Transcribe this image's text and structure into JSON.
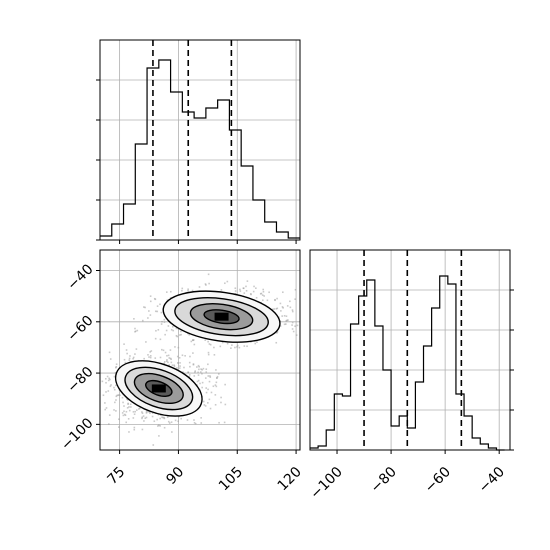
{
  "chart_data": {
    "type": "corner",
    "colors": {
      "line": "#000000",
      "grid": "#b0b0b0",
      "scatter": "#9e9e9e"
    },
    "grid": true,
    "quantile_lines": "dashed",
    "panels": [
      {
        "id": "hist_x",
        "type": "histogram-step",
        "xlim": [
          70,
          121
        ],
        "bin_edges": [
          70,
          73,
          76,
          79,
          82,
          85,
          88,
          91,
          94,
          97,
          100,
          103,
          106,
          109,
          112,
          115,
          118,
          121
        ],
        "counts": [
          2,
          8,
          18,
          48,
          86,
          90,
          74,
          64,
          61,
          66,
          70,
          55,
          37,
          20,
          9,
          4,
          1
        ],
        "quantiles": [
          83.5,
          92.5,
          103.5
        ],
        "x_ticks": [
          75,
          90,
          105,
          120
        ],
        "y_ticks": [
          0,
          20,
          40,
          60,
          80
        ]
      },
      {
        "id": "joint",
        "type": "2d-density",
        "xlim": [
          70,
          121
        ],
        "ylim": [
          -110,
          -32
        ],
        "x_ticks": [
          "75",
          "90",
          "105",
          "120"
        ],
        "y_ticks": [
          "−40",
          "−60",
          "−80",
          "−100"
        ],
        "x_tick_values": [
          75,
          90,
          105,
          120
        ],
        "y_tick_values": [
          -40,
          -60,
          -80,
          -100
        ],
        "clusters": [
          {
            "center": [
              85,
              -86
            ],
            "spread": [
              6.5,
              6.5
            ],
            "contour_radii": [
              [
                3.5,
                2.6
              ],
              [
                6.5,
                5
              ],
              [
                9,
                7.2
              ],
              [
                11.5,
                9.5
              ]
            ]
          },
          {
            "center": [
              101,
              -58
            ],
            "spread": [
              8,
              5
            ],
            "contour_radii": [
              [
                4.5,
                2.5
              ],
              [
                8,
                4.8
              ],
              [
                12,
                7
              ],
              [
                15,
                9.5
              ]
            ]
          }
        ]
      },
      {
        "id": "hist_y",
        "type": "histogram-step",
        "xlim": [
          -110,
          -36
        ],
        "bin_edges": [
          -110,
          -107,
          -104,
          -101,
          -98,
          -95,
          -92,
          -89,
          -86,
          -83,
          -80,
          -77,
          -74,
          -71,
          -68,
          -65,
          -62,
          -59,
          -56,
          -53,
          -50,
          -47,
          -44,
          -41,
          -38
        ],
        "counts": [
          1,
          2,
          10,
          28,
          27,
          63,
          77,
          85,
          62,
          40,
          12,
          17,
          11,
          34,
          52,
          71,
          87,
          83,
          28,
          17,
          6,
          3,
          1,
          0
        ],
        "quantiles": [
          -90,
          -74,
          -54
        ],
        "x_ticks": [
          "−100",
          "−80",
          "−60",
          "−40"
        ],
        "x_tick_values": [
          -100,
          -80,
          -60,
          -40
        ],
        "y_ticks": [
          0,
          20,
          40,
          60,
          80
        ]
      }
    ]
  }
}
